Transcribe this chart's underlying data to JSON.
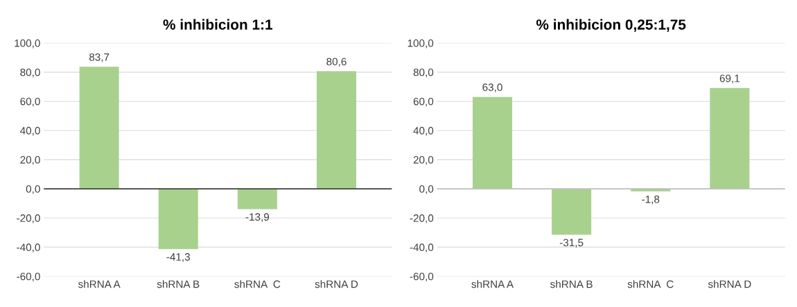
{
  "chart_data": [
    {
      "type": "bar",
      "title": "% inhibicion 1:1",
      "categories": [
        "shRNA A",
        "shRNA B",
        "shRNA  C",
        "shRNA D"
      ],
      "values": [
        83.7,
        -41.3,
        -13.9,
        80.6
      ],
      "value_labels": [
        "83,7",
        "-41,3",
        "-13,9",
        "80,6"
      ],
      "color": "#a9d18e",
      "ylim": [
        -60,
        100
      ],
      "yticks": [
        {
          "value": -60,
          "label": "-60,0"
        },
        {
          "value": -40,
          "label": "-40,0"
        },
        {
          "value": -20,
          "label": "-20,0"
        },
        {
          "value": 0,
          "label": "0,0"
        },
        {
          "value": 20,
          "label": "20,0"
        },
        {
          "value": 40,
          "label": "40,0"
        },
        {
          "value": 60,
          "label": "60,0"
        },
        {
          "value": 80,
          "label": "80,0"
        },
        {
          "value": 100,
          "label": "100,0"
        }
      ],
      "grid": "y"
    },
    {
      "type": "bar",
      "title": "% inhibicion 0,25:1,75",
      "categories": [
        "shRNA A",
        "shRNA B",
        "shRNA  C",
        "shRNA D"
      ],
      "values": [
        63.0,
        -31.5,
        -1.8,
        69.1
      ],
      "value_labels": [
        "63,0",
        "-31,5",
        "-1,8",
        "69,1"
      ],
      "color": "#a9d18e",
      "ylim": [
        -60,
        100
      ],
      "yticks": [
        {
          "value": -60,
          "label": "-60,0"
        },
        {
          "value": -40,
          "label": "-40,0"
        },
        {
          "value": -20,
          "label": "-20,0"
        },
        {
          "value": 0,
          "label": "0,0"
        },
        {
          "value": 20,
          "label": "20,0"
        },
        {
          "value": 40,
          "label": "40,0"
        },
        {
          "value": 60,
          "label": "60,0"
        },
        {
          "value": 80,
          "label": "80,0"
        },
        {
          "value": 100,
          "label": "100,0"
        }
      ],
      "grid": "y"
    }
  ]
}
